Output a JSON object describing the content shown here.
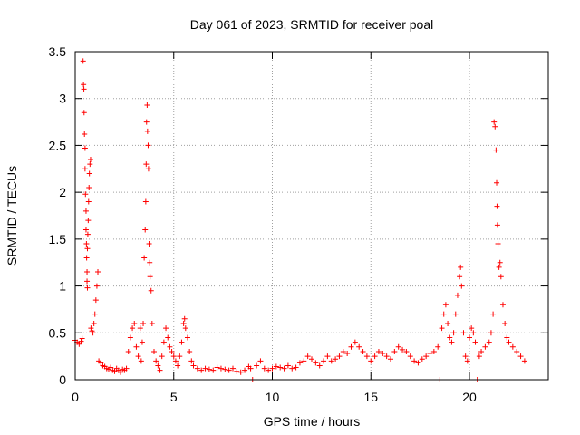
{
  "chart_data": {
    "type": "scatter",
    "title": "Day 061 of 2023, SRMTID for receiver poal",
    "xlabel": "GPS time / hours",
    "ylabel": "SRMTID / TECUs",
    "xlim": [
      0,
      24
    ],
    "ylim": [
      0,
      3.5
    ],
    "x_ticks": [
      0,
      5,
      10,
      15,
      20
    ],
    "x_tick_labels": [
      "0",
      "5",
      "10",
      "15",
      "20"
    ],
    "y_ticks": [
      0,
      0.5,
      1,
      1.5,
      2,
      2.5,
      3,
      3.5
    ],
    "y_tick_labels": [
      "0",
      "0.5",
      "1",
      "1.5",
      "2",
      "2.5",
      "3",
      "3.5"
    ],
    "grid": true,
    "marker": "+",
    "colors": {
      "series": "#ff0000",
      "grid": "#a0a0a0",
      "axis": "#000000"
    },
    "series": [
      {
        "name": "SRMTID",
        "points": [
          [
            0.0,
            0.42
          ],
          [
            0.1,
            0.4
          ],
          [
            0.2,
            0.38
          ],
          [
            0.3,
            0.41
          ],
          [
            0.35,
            0.44
          ],
          [
            0.4,
            3.4
          ],
          [
            0.42,
            3.15
          ],
          [
            0.44,
            3.1
          ],
          [
            0.45,
            2.85
          ],
          [
            0.47,
            2.62
          ],
          [
            0.5,
            2.47
          ],
          [
            0.5,
            2.25
          ],
          [
            0.52,
            1.98
          ],
          [
            0.55,
            1.8
          ],
          [
            0.55,
            1.6
          ],
          [
            0.57,
            1.45
          ],
          [
            0.58,
            1.3
          ],
          [
            0.6,
            1.15
          ],
          [
            0.6,
            1.05
          ],
          [
            0.62,
            0.98
          ],
          [
            0.62,
            1.4
          ],
          [
            0.64,
            1.55
          ],
          [
            0.66,
            1.7
          ],
          [
            0.68,
            1.9
          ],
          [
            0.7,
            2.05
          ],
          [
            0.72,
            2.2
          ],
          [
            0.75,
            2.3
          ],
          [
            0.78,
            2.35
          ],
          [
            0.8,
            0.55
          ],
          [
            0.85,
            0.52
          ],
          [
            0.9,
            0.5
          ],
          [
            0.95,
            0.6
          ],
          [
            1.0,
            0.7
          ],
          [
            1.05,
            0.85
          ],
          [
            1.1,
            1.0
          ],
          [
            1.15,
            1.15
          ],
          [
            1.2,
            0.2
          ],
          [
            1.3,
            0.18
          ],
          [
            1.4,
            0.15
          ],
          [
            1.5,
            0.14
          ],
          [
            1.6,
            0.12
          ],
          [
            1.7,
            0.11
          ],
          [
            1.8,
            0.13
          ],
          [
            1.9,
            0.1
          ],
          [
            2.0,
            0.09
          ],
          [
            2.1,
            0.12
          ],
          [
            2.2,
            0.1
          ],
          [
            2.3,
            0.08
          ],
          [
            2.4,
            0.11
          ],
          [
            2.5,
            0.1
          ],
          [
            2.6,
            0.12
          ],
          [
            2.7,
            0.3
          ],
          [
            2.8,
            0.45
          ],
          [
            2.9,
            0.55
          ],
          [
            3.0,
            0.6
          ],
          [
            3.1,
            0.35
          ],
          [
            3.2,
            0.25
          ],
          [
            3.3,
            0.55
          ],
          [
            3.35,
            0.2
          ],
          [
            3.4,
            0.4
          ],
          [
            3.45,
            0.6
          ],
          [
            3.5,
            1.3
          ],
          [
            3.55,
            1.6
          ],
          [
            3.58,
            1.9
          ],
          [
            3.6,
            2.3
          ],
          [
            3.62,
            2.75
          ],
          [
            3.65,
            2.93
          ],
          [
            3.67,
            2.65
          ],
          [
            3.7,
            2.5
          ],
          [
            3.72,
            2.25
          ],
          [
            3.75,
            1.45
          ],
          [
            3.78,
            1.25
          ],
          [
            3.8,
            1.1
          ],
          [
            3.85,
            0.95
          ],
          [
            3.9,
            0.6
          ],
          [
            4.0,
            0.3
          ],
          [
            4.1,
            0.2
          ],
          [
            4.2,
            0.15
          ],
          [
            4.3,
            0.1
          ],
          [
            4.4,
            0.25
          ],
          [
            4.5,
            0.4
          ],
          [
            4.6,
            0.55
          ],
          [
            4.7,
            0.45
          ],
          [
            4.8,
            0.35
          ],
          [
            4.9,
            0.3
          ],
          [
            5.0,
            0.25
          ],
          [
            5.1,
            0.2
          ],
          [
            5.2,
            0.15
          ],
          [
            5.3,
            0.25
          ],
          [
            5.4,
            0.4
          ],
          [
            5.5,
            0.6
          ],
          [
            5.55,
            0.65
          ],
          [
            5.6,
            0.55
          ],
          [
            5.7,
            0.45
          ],
          [
            5.8,
            0.3
          ],
          [
            5.9,
            0.2
          ],
          [
            6.0,
            0.15
          ],
          [
            6.2,
            0.12
          ],
          [
            6.4,
            0.1
          ],
          [
            6.6,
            0.12
          ],
          [
            6.8,
            0.11
          ],
          [
            7.0,
            0.1
          ],
          [
            7.2,
            0.13
          ],
          [
            7.4,
            0.12
          ],
          [
            7.6,
            0.11
          ],
          [
            7.8,
            0.1
          ],
          [
            8.0,
            0.12
          ],
          [
            8.2,
            0.09
          ],
          [
            8.4,
            0.08
          ],
          [
            8.6,
            0.1
          ],
          [
            8.8,
            0.14
          ],
          [
            8.9,
            0.12
          ],
          [
            9.0,
            0.0
          ],
          [
            9.2,
            0.15
          ],
          [
            9.4,
            0.2
          ],
          [
            9.6,
            0.12
          ],
          [
            9.8,
            0.1
          ],
          [
            10.0,
            0.12
          ],
          [
            10.2,
            0.14
          ],
          [
            10.4,
            0.13
          ],
          [
            10.6,
            0.12
          ],
          [
            10.8,
            0.15
          ],
          [
            11.0,
            0.12
          ],
          [
            11.2,
            0.13
          ],
          [
            11.4,
            0.18
          ],
          [
            11.6,
            0.2
          ],
          [
            11.8,
            0.25
          ],
          [
            12.0,
            0.22
          ],
          [
            12.2,
            0.18
          ],
          [
            12.4,
            0.15
          ],
          [
            12.6,
            0.2
          ],
          [
            12.8,
            0.25
          ],
          [
            13.0,
            0.2
          ],
          [
            13.2,
            0.22
          ],
          [
            13.4,
            0.25
          ],
          [
            13.6,
            0.3
          ],
          [
            13.8,
            0.28
          ],
          [
            14.0,
            0.35
          ],
          [
            14.2,
            0.4
          ],
          [
            14.4,
            0.35
          ],
          [
            14.6,
            0.3
          ],
          [
            14.8,
            0.25
          ],
          [
            15.0,
            0.2
          ],
          [
            15.2,
            0.25
          ],
          [
            15.4,
            0.3
          ],
          [
            15.6,
            0.28
          ],
          [
            15.8,
            0.25
          ],
          [
            16.0,
            0.22
          ],
          [
            16.2,
            0.3
          ],
          [
            16.4,
            0.35
          ],
          [
            16.6,
            0.32
          ],
          [
            16.8,
            0.3
          ],
          [
            17.0,
            0.25
          ],
          [
            17.2,
            0.2
          ],
          [
            17.4,
            0.18
          ],
          [
            17.6,
            0.22
          ],
          [
            17.8,
            0.25
          ],
          [
            18.0,
            0.28
          ],
          [
            18.2,
            0.3
          ],
          [
            18.4,
            0.35
          ],
          [
            18.5,
            0.0
          ],
          [
            18.6,
            0.55
          ],
          [
            18.7,
            0.7
          ],
          [
            18.8,
            0.8
          ],
          [
            18.9,
            0.6
          ],
          [
            19.0,
            0.45
          ],
          [
            19.1,
            0.4
          ],
          [
            19.2,
            0.5
          ],
          [
            19.3,
            0.7
          ],
          [
            19.4,
            0.9
          ],
          [
            19.5,
            1.1
          ],
          [
            19.55,
            1.2
          ],
          [
            19.6,
            1.0
          ],
          [
            19.7,
            0.5
          ],
          [
            19.8,
            0.25
          ],
          [
            19.9,
            0.2
          ],
          [
            20.0,
            0.45
          ],
          [
            20.1,
            0.55
          ],
          [
            20.2,
            0.5
          ],
          [
            20.3,
            0.4
          ],
          [
            20.4,
            0.0
          ],
          [
            20.5,
            0.25
          ],
          [
            20.6,
            0.3
          ],
          [
            20.8,
            0.35
          ],
          [
            21.0,
            0.4
          ],
          [
            21.1,
            0.5
          ],
          [
            21.2,
            0.7
          ],
          [
            21.25,
            2.75
          ],
          [
            21.3,
            2.7
          ],
          [
            21.35,
            2.45
          ],
          [
            21.38,
            2.1
          ],
          [
            21.4,
            1.85
          ],
          [
            21.42,
            1.65
          ],
          [
            21.45,
            1.45
          ],
          [
            21.5,
            1.2
          ],
          [
            21.55,
            1.25
          ],
          [
            21.6,
            1.1
          ],
          [
            21.7,
            0.8
          ],
          [
            21.8,
            0.6
          ],
          [
            21.9,
            0.45
          ],
          [
            22.0,
            0.4
          ],
          [
            22.2,
            0.35
          ],
          [
            22.4,
            0.3
          ],
          [
            22.6,
            0.25
          ],
          [
            22.8,
            0.2
          ]
        ]
      }
    ]
  }
}
